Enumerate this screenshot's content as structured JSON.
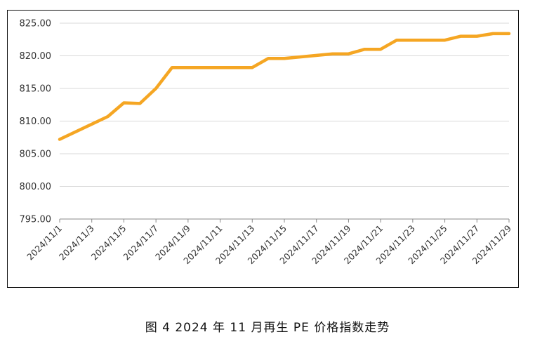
{
  "caption": "图 4  2024 年 11 月再生 PE 价格指数走势",
  "chart_data": {
    "type": "line",
    "title": "",
    "xlabel": "",
    "ylabel": "",
    "ylim": [
      795,
      825
    ],
    "yticks": [
      "795.00",
      "800.00",
      "805.00",
      "810.00",
      "815.00",
      "820.00",
      "825.00"
    ],
    "xtick_labels": [
      "2024/11/1",
      "2024/11/3",
      "2024/11/5",
      "2024/11/7",
      "2024/11/9",
      "2024/11/11",
      "2024/11/13",
      "2024/11/15",
      "2024/11/17",
      "2024/11/19",
      "2024/11/21",
      "2024/11/23",
      "2024/11/25",
      "2024/11/27",
      "2024/11/29"
    ],
    "grid": true,
    "line_color": "#F5A623",
    "series": [
      {
        "x": [
          "2024/11/1",
          "2024/11/4",
          "2024/11/5",
          "2024/11/6",
          "2024/11/7",
          "2024/11/8",
          "2024/11/11",
          "2024/11/12",
          "2024/11/13",
          "2024/11/14",
          "2024/11/15",
          "2024/11/18",
          "2024/11/19",
          "2024/11/20",
          "2024/11/21",
          "2024/11/22",
          "2024/11/25",
          "2024/11/26",
          "2024/11/27",
          "2024/11/28",
          "2024/11/29"
        ],
        "values": [
          807.2,
          810.7,
          812.8,
          812.7,
          815.0,
          818.2,
          818.2,
          818.2,
          818.2,
          819.6,
          819.6,
          820.3,
          820.3,
          821.0,
          821.0,
          822.4,
          822.4,
          823.0,
          823.0,
          823.4,
          823.4
        ]
      }
    ]
  }
}
